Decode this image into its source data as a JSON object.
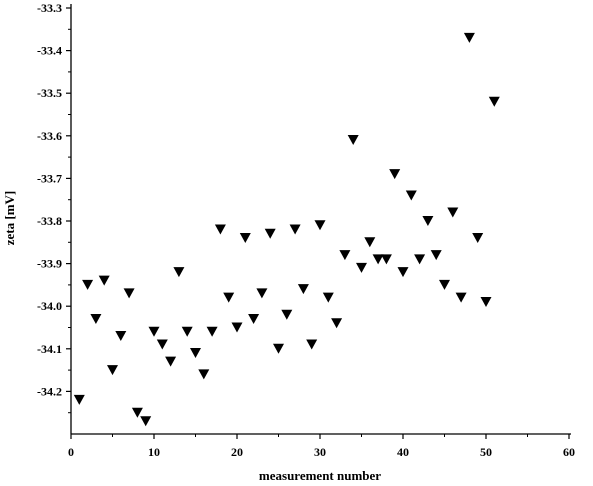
{
  "chart_data": {
    "type": "scatter",
    "title": "",
    "xlabel": "measurement number",
    "ylabel": "zeta [mV]",
    "xlim": [
      0,
      60
    ],
    "ylim": [
      -34.3,
      -33.3
    ],
    "xticks": [
      0,
      10,
      20,
      30,
      40,
      50,
      60
    ],
    "yticks": [
      -34.2,
      -34.1,
      -34.0,
      -33.9,
      -33.8,
      -33.7,
      -33.6,
      -33.5,
      -33.4,
      -33.3
    ],
    "ytick_labels": [
      "-34.2",
      "-34.1",
      "-34.0",
      "-33.9",
      "-33.8",
      "-33.7",
      "-33.6",
      "-33.5",
      "-33.4",
      "-33.3"
    ],
    "grid": false,
    "marker": "filled-down-triangle",
    "marker_color": "#000000",
    "series": [
      {
        "x": [
          1,
          2,
          3,
          4,
          5,
          6,
          7,
          8,
          9,
          10,
          11,
          12,
          13,
          14,
          15,
          16,
          17,
          18,
          19,
          20,
          21,
          22,
          23,
          24,
          25,
          26,
          27,
          28,
          29,
          30,
          31,
          32,
          33,
          34,
          35,
          36,
          37,
          38,
          39,
          40,
          41,
          42,
          43,
          44,
          45,
          46,
          47,
          48,
          49,
          50,
          51
        ],
        "y": [
          -34.22,
          -33.95,
          -34.03,
          -33.94,
          -34.15,
          -34.07,
          -33.97,
          -34.25,
          -34.27,
          -34.06,
          -34.09,
          -34.13,
          -33.92,
          -34.06,
          -34.11,
          -34.16,
          -34.06,
          -33.82,
          -33.98,
          -34.05,
          -33.84,
          -34.03,
          -33.97,
          -33.83,
          -34.1,
          -34.02,
          -33.82,
          -33.96,
          -34.09,
          -33.81,
          -33.98,
          -34.04,
          -33.88,
          -33.61,
          -33.91,
          -33.85,
          -33.89,
          -33.89,
          -33.69,
          -33.92,
          -33.74,
          -33.89,
          -33.8,
          -33.88,
          -33.95,
          -33.78,
          -33.98,
          -33.37,
          -33.84,
          -33.99,
          -33.52
        ]
      }
    ]
  }
}
